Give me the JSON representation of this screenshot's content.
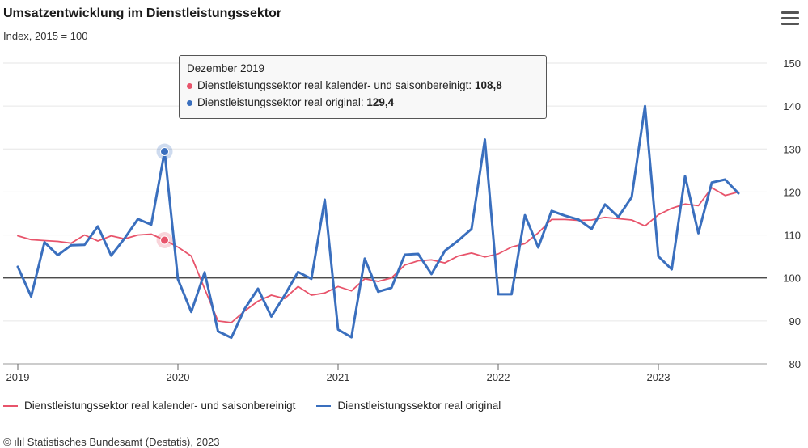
{
  "header": {
    "title": "Umsatzentwicklung im Dienstleistungssektor",
    "subtitle": "Index, 2015 = 100"
  },
  "tooltip": {
    "heading": "Dezember 2019",
    "line1_label": "Dienstleistungssektor real kalender- und saisonbereinigt:",
    "line1_value": "108,8",
    "line2_label": "Dienstleistungssektor real original:",
    "line2_value": "129,4"
  },
  "legend": {
    "item1": "Dienstleistungssektor real kalender- und saisonbereinigt",
    "item2": "Dienstleistungssektor real original"
  },
  "footer": {
    "source": "© ılıl Statistisches Bundesamt (Destatis), 2023"
  },
  "colors": {
    "adjusted": "#e8546b",
    "original": "#3a6fbe",
    "grid": "#e6e6e6",
    "baseline": "#333333"
  },
  "chart_data": {
    "type": "line",
    "x_labels": [
      "2019",
      "2020",
      "2021",
      "2022",
      "2023"
    ],
    "x_start": "2019-01",
    "ylim": [
      80,
      150
    ],
    "yticks": [
      80,
      90,
      100,
      110,
      120,
      130,
      140,
      150
    ],
    "reference_line": 100,
    "highlight": "2019-12",
    "series": [
      {
        "name": "Dienstleistungssektor real kalender- und saisonbereinigt",
        "color": "#e8546b",
        "values": [
          109.8,
          108.9,
          108.7,
          108.5,
          108.1,
          110.0,
          108.6,
          109.8,
          109.1,
          110.0,
          110.2,
          108.8,
          107.2,
          105.1,
          97.5,
          90.0,
          89.6,
          92.3,
          94.6,
          96.0,
          95.2,
          98.0,
          96.0,
          96.5,
          98.0,
          97.0,
          99.8,
          99.2,
          100.0,
          103.0,
          104.0,
          104.2,
          103.5,
          105.1,
          105.8,
          104.9,
          105.6,
          107.2,
          108.0,
          110.5,
          113.6,
          113.6,
          113.4,
          113.5,
          114.1,
          113.8,
          113.5,
          112.1,
          114.7,
          116.2,
          117.2,
          116.8,
          121.0,
          119.2,
          120.0
        ]
      },
      {
        "name": "Dienstleistungssektor real original",
        "color": "#3a6fbe",
        "values": [
          102.6,
          95.7,
          108.3,
          105.3,
          107.6,
          107.7,
          112.0,
          105.2,
          109.2,
          113.7,
          112.4,
          129.4,
          99.7,
          92.1,
          101.3,
          87.6,
          86.1,
          92.8,
          97.5,
          91.0,
          96.0,
          101.4,
          99.8,
          118.2,
          88.0,
          86.2,
          104.5,
          96.8,
          97.7,
          105.4,
          105.6,
          100.9,
          106.3,
          108.7,
          111.4,
          132.2,
          96.2,
          96.2,
          114.6,
          107.1,
          115.6,
          114.5,
          113.6,
          111.4,
          117.1,
          114.2,
          118.8,
          140.0,
          105.0,
          102.0,
          123.7,
          110.4,
          122.2,
          122.9,
          119.7
        ]
      }
    ]
  }
}
